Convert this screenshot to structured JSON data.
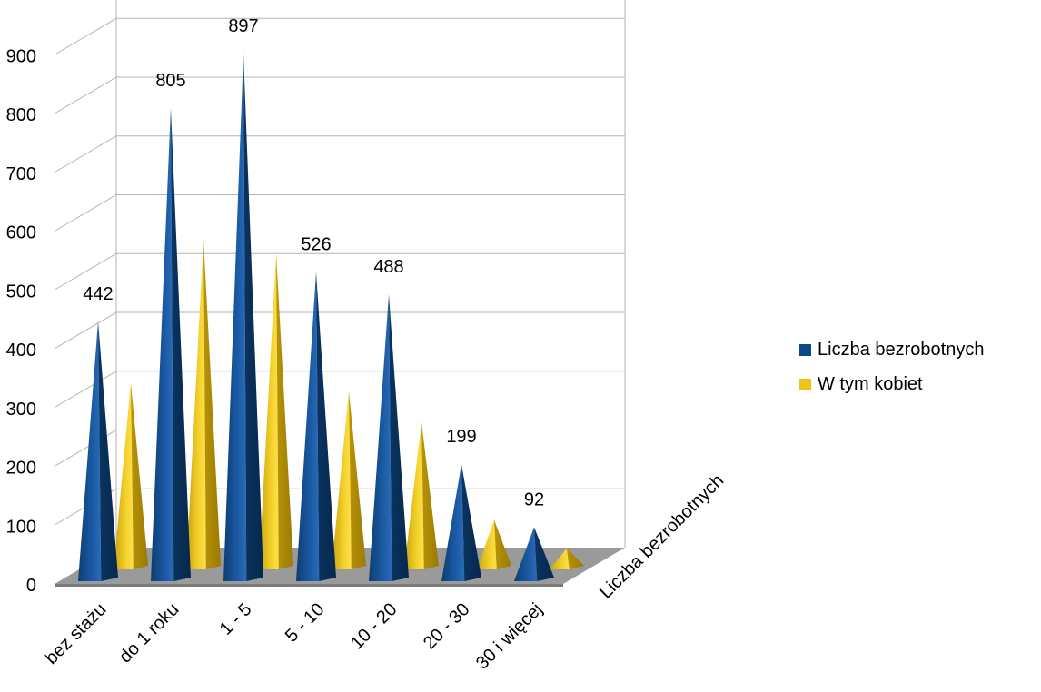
{
  "chart_data": {
    "type": "bar",
    "style": "3d-cone",
    "categories": [
      "bez stażu",
      "do 1 roku",
      "1 - 5",
      "5 - 10",
      "10 - 20",
      "20 - 30",
      "30 i więcej"
    ],
    "series": [
      {
        "name": "Liczba bezrobotnych",
        "color": "#0b4a8a",
        "values": [
          442,
          805,
          897,
          526,
          488,
          199,
          92
        ],
        "show_labels": true
      },
      {
        "name": "W tym kobiet",
        "color": "#f0c417",
        "values": [
          317,
          562,
          537,
          303,
          251,
          84,
          36
        ],
        "show_labels": false
      }
    ],
    "y_ticks": [
      "0",
      "100",
      "200",
      "300",
      "400",
      "500",
      "600",
      "700",
      "800",
      "900"
    ],
    "ylim": [
      0,
      1000
    ],
    "depth_axis_label": "Liczba bezrobotnych",
    "grid": true,
    "legend_position": "right"
  }
}
